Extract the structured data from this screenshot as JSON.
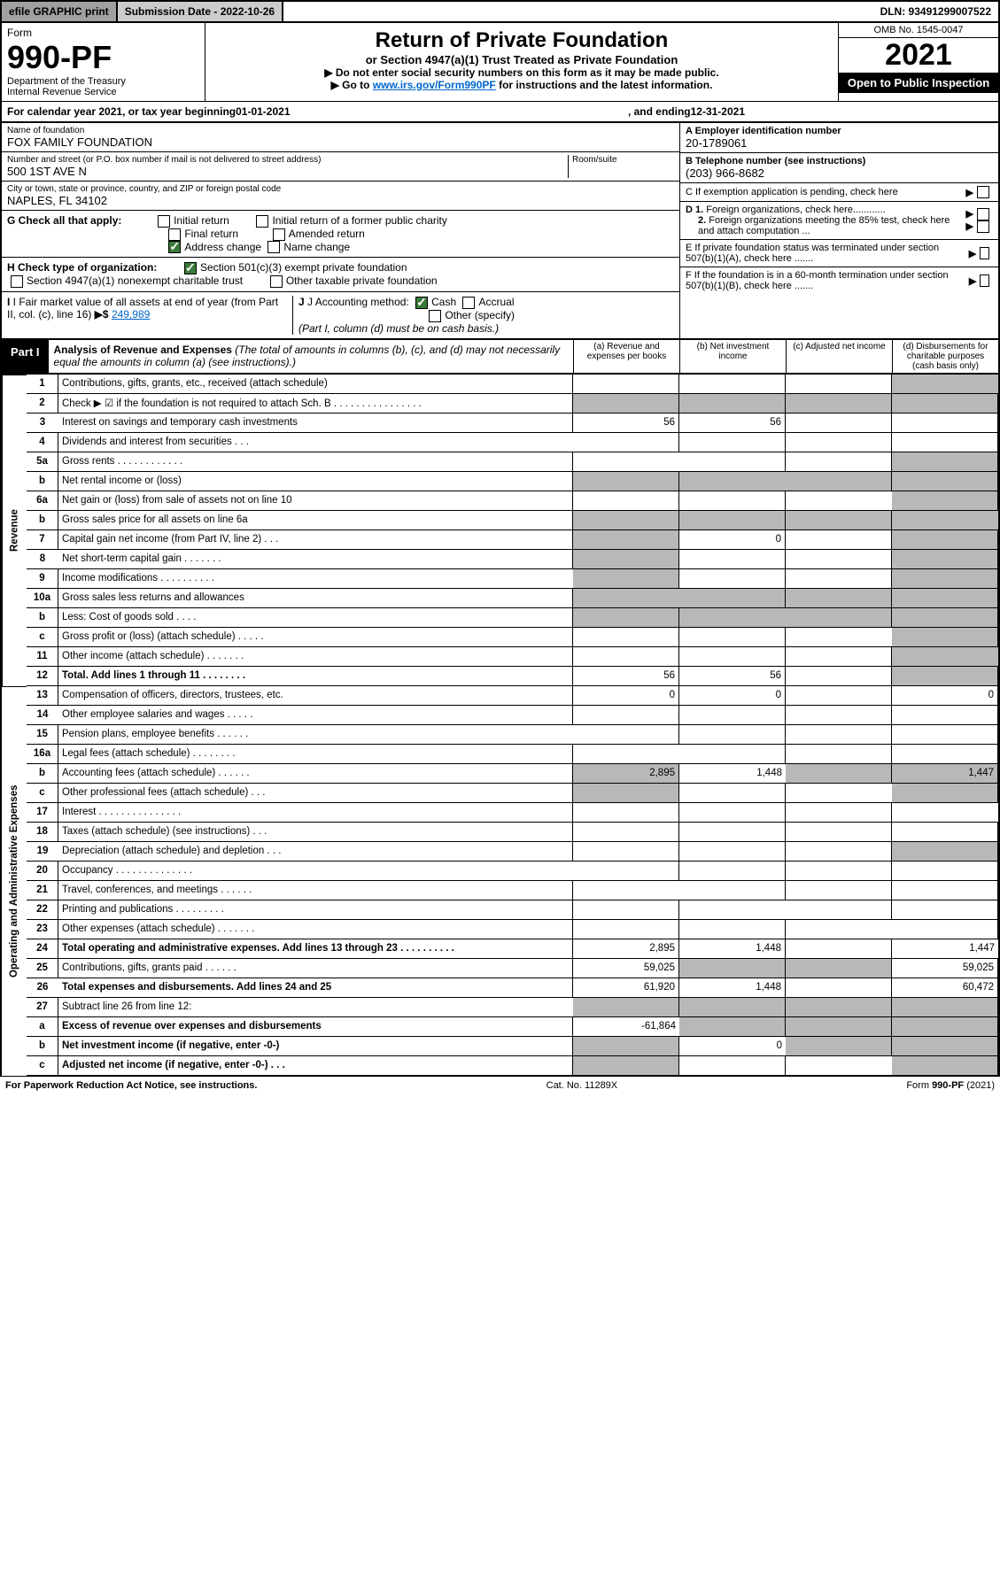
{
  "header": {
    "efile_btn": "efile GRAPHIC print",
    "submission_label": "Submission Date - 2022-10-26",
    "dln": "DLN: 93491299007522"
  },
  "form_id": {
    "form_word": "Form",
    "number": "990-PF",
    "dept1": "Department of the Treasury",
    "dept2": "Internal Revenue Service"
  },
  "title": {
    "main": "Return of Private Foundation",
    "sub": "or Section 4947(a)(1) Trust Treated as Private Foundation",
    "note1": "▶ Do not enter social security numbers on this form as it may be made public.",
    "note2_pre": "▶ Go to ",
    "note2_link": "www.irs.gov/Form990PF",
    "note2_post": " for instructions and the latest information."
  },
  "yearbox": {
    "omb": "OMB No. 1545-0047",
    "year": "2021",
    "open": "Open to Public Inspection"
  },
  "calendar": {
    "pre": "For calendar year 2021, or tax year beginning ",
    "begin": "01-01-2021",
    "mid": ", and ending ",
    "end": "12-31-2021"
  },
  "name_block": {
    "label": "Name of foundation",
    "value": "FOX FAMILY FOUNDATION"
  },
  "address": {
    "label": "Number and street (or P.O. box number if mail is not delivered to street address)",
    "value": "500 1ST AVE N",
    "room_label": "Room/suite",
    "room": ""
  },
  "city": {
    "label": "City or town, state or province, country, and ZIP or foreign postal code",
    "value": "NAPLES, FL  34102"
  },
  "ein": {
    "label": "A Employer identification number",
    "value": "20-1789061"
  },
  "phone": {
    "label": "B Telephone number (see instructions)",
    "value": "(203) 966-8682"
  },
  "boxC": "C If exemption application is pending, check here",
  "boxD1": "D 1. Foreign organizations, check here............",
  "boxD2": "2. Foreign organizations meeting the 85% test, check here and attach computation ...",
  "boxE": "E  If private foundation status was terminated under section 507(b)(1)(A), check here .......",
  "boxF": "F  If the foundation is in a 60-month termination under section 507(b)(1)(B), check here .......",
  "checkG": {
    "label": "G Check all that apply:",
    "opts": [
      "Initial return",
      "Initial return of a former public charity",
      "Final return",
      "Amended return",
      "Address change",
      "Name change"
    ]
  },
  "checkH": {
    "label": "H Check type of organization:",
    "opt1": "Section 501(c)(3) exempt private foundation",
    "opt2": "Section 4947(a)(1) nonexempt charitable trust",
    "opt3": "Other taxable private foundation"
  },
  "boxI": {
    "label": "I Fair market value of all assets at end of year (from Part II, col. (c), line 16) ",
    "value": "249,989"
  },
  "boxJ": {
    "label": "J Accounting method:",
    "cash": "Cash",
    "accrual": "Accrual",
    "other": "Other (specify)",
    "note": "(Part I, column (d) must be on cash basis.)"
  },
  "part1": {
    "label": "Part I",
    "title": "Analysis of Revenue and Expenses",
    "title_note": " (The total of amounts in columns (b), (c), and (d) may not necessarily equal the amounts in column (a) (see instructions).)",
    "cols": {
      "a": "(a)  Revenue and expenses per books",
      "b": "(b)  Net investment income",
      "c": "(c)  Adjusted net income",
      "d": "(d)  Disbursements for charitable purposes (cash basis only)"
    }
  },
  "side_labels": {
    "rev": "Revenue",
    "opex": "Operating and Administrative Expenses"
  },
  "rows": [
    {
      "n": "1",
      "t": "Contributions, gifts, grants, etc., received (attach schedule)"
    },
    {
      "n": "2",
      "t": "Check ▶ ☑ if the foundation is not required to attach Sch. B     .   .   .   .   .   .   .   .   .   .   .   .   .   .   .   ."
    },
    {
      "n": "3",
      "t": "Interest on savings and temporary cash investments",
      "a": "56",
      "b": "56"
    },
    {
      "n": "4",
      "t": "Dividends and interest from securities     .   .   ."
    },
    {
      "n": "5a",
      "t": "Gross rents     .   .   .   .   .   .   .   .   .   .   .   ."
    },
    {
      "n": "b",
      "t": "Net rental income or (loss)  "
    },
    {
      "n": "6a",
      "t": "Net gain or (loss) from sale of assets not on line 10"
    },
    {
      "n": "b",
      "t": "Gross sales price for all assets on line 6a  "
    },
    {
      "n": "7",
      "t": "Capital gain net income (from Part IV, line 2)   .   .   .",
      "b": "0"
    },
    {
      "n": "8",
      "t": "Net short-term capital gain   .   .   .   .   .   .   ."
    },
    {
      "n": "9",
      "t": "Income modifications   .   .   .   .   .   .   .   .   .   ."
    },
    {
      "n": "10a",
      "t": "Gross sales less returns and allowances"
    },
    {
      "n": "b",
      "t": "Less: Cost of goods sold     .   .   .   ."
    },
    {
      "n": "c",
      "t": "Gross profit or (loss) (attach schedule)     .   .   .   .   ."
    },
    {
      "n": "11",
      "t": "Other income (attach schedule)     .   .   .   .   .   .   ."
    },
    {
      "n": "12",
      "t": "Total. Add lines 1 through 11    .   .   .   .   .   .   .   .",
      "a": "56",
      "b": "56",
      "bold": true
    }
  ],
  "rows2": [
    {
      "n": "13",
      "t": "Compensation of officers, directors, trustees, etc.",
      "a": "0",
      "b": "0",
      "d": "0"
    },
    {
      "n": "14",
      "t": "Other employee salaries and wages    .   .   .   .   ."
    },
    {
      "n": "15",
      "t": "Pension plans, employee benefits   .   .   .   .   .   ."
    },
    {
      "n": "16a",
      "t": "Legal fees (attach schedule)   .   .   .   .   .   .   .   ."
    },
    {
      "n": "b",
      "t": "Accounting fees (attach schedule)   .   .   .   .   .   .",
      "a": "2,895",
      "b": "1,448",
      "d": "1,447"
    },
    {
      "n": "c",
      "t": "Other professional fees (attach schedule)    .   .   ."
    },
    {
      "n": "17",
      "t": "Interest   .   .   .   .   .   .   .   .   .   .   .   .   .   .   ."
    },
    {
      "n": "18",
      "t": "Taxes (attach schedule) (see instructions)     .   .   ."
    },
    {
      "n": "19",
      "t": "Depreciation (attach schedule) and depletion    .   .   ."
    },
    {
      "n": "20",
      "t": "Occupancy   .   .   .   .   .   .   .   .   .   .   .   .   .   ."
    },
    {
      "n": "21",
      "t": "Travel, conferences, and meetings   .   .   .   .   .   ."
    },
    {
      "n": "22",
      "t": "Printing and publications   .   .   .   .   .   .   .   .   ."
    },
    {
      "n": "23",
      "t": "Other expenses (attach schedule)   .   .   .   .   .   .   ."
    },
    {
      "n": "24",
      "t": "Total operating and administrative expenses. Add lines 13 through 23   .   .   .   .   .   .   .   .   .   .",
      "a": "2,895",
      "b": "1,448",
      "d": "1,447",
      "bold": true
    },
    {
      "n": "25",
      "t": "Contributions, gifts, grants paid     .   .   .   .   .   .",
      "a": "59,025",
      "d": "59,025"
    },
    {
      "n": "26",
      "t": "Total expenses and disbursements. Add lines 24 and 25",
      "a": "61,920",
      "b": "1,448",
      "d": "60,472",
      "bold": true
    },
    {
      "n": "27",
      "t": "Subtract line 26 from line 12:"
    },
    {
      "n": "a",
      "t": "Excess of revenue over expenses and disbursements",
      "a": "-61,864",
      "bold": true
    },
    {
      "n": "b",
      "t": "Net investment income (if negative, enter -0-)",
      "b": "0",
      "bold": true
    },
    {
      "n": "c",
      "t": "Adjusted net income (if negative, enter -0-)   .   .   .",
      "bold": true
    }
  ],
  "footer": {
    "left": "For Paperwork Reduction Act Notice, see instructions.",
    "mid": "Cat. No. 11289X",
    "right": "Form 990-PF (2021)"
  }
}
